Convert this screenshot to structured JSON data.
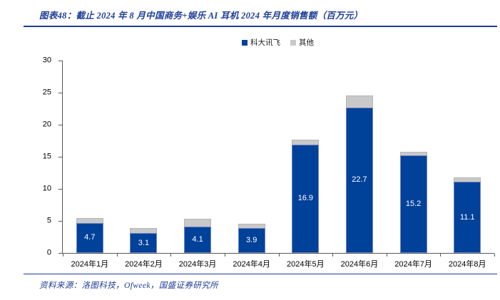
{
  "header": {
    "title": "图表48：截止 2024 年 8 月中国商务+娱乐 AI 耳机 2024 年月度销售额（百万元）"
  },
  "footer": {
    "source": "资料来源：洛图科技，Ofweek，国盛证券研究所"
  },
  "colors": {
    "accent_navy": "#1e3d96",
    "bar_blue": "#00419a",
    "bar_gray": "#c9c9c9",
    "axis_gray": "#595959",
    "bar_label_white": "#ffffff"
  },
  "legend": {
    "items": [
      {
        "label": "科大讯飞",
        "color": "#00419a"
      },
      {
        "label": "其他",
        "color": "#c9c9c9"
      }
    ]
  },
  "chart_data": {
    "type": "bar",
    "stacked": true,
    "title": "截止2024年8月中国商务+娱乐AI耳机2024年月度销售额（百万元）",
    "categories": [
      "2024年1月",
      "2024年2月",
      "2024年3月",
      "2024年4月",
      "2024年5月",
      "2024年6月",
      "2024年7月",
      "2024年8月"
    ],
    "series": [
      {
        "name": "科大讯飞",
        "color": "#00419a",
        "values": [
          4.7,
          3.1,
          4.1,
          3.9,
          16.9,
          22.7,
          15.2,
          11.1
        ],
        "data_labels_visible": true,
        "data_label_color": "#ffffff"
      },
      {
        "name": "其他",
        "color": "#c9c9c9",
        "values": [
          0.8,
          0.8,
          1.2,
          0.7,
          0.8,
          1.9,
          0.6,
          0.7
        ],
        "data_labels_visible": false
      }
    ],
    "ylim": [
      0,
      30
    ],
    "yticks": [
      0,
      5,
      10,
      15,
      20,
      25,
      30
    ],
    "xlabel": "",
    "ylabel": "",
    "grid": false,
    "legend_position": "top-center"
  }
}
